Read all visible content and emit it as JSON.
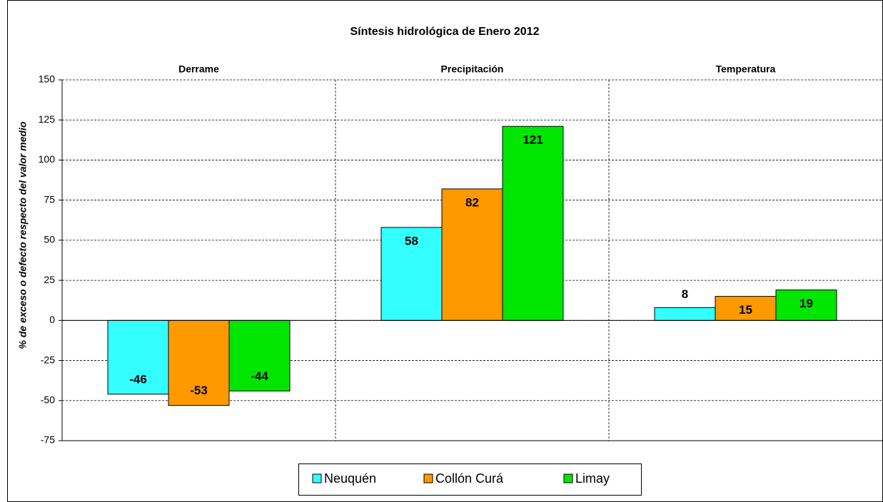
{
  "chart_data": {
    "type": "bar",
    "title": "Síntesis hidrológica de Enero 2012",
    "y_label": "% de exceso o defecto respecto del valor medio",
    "categories": [
      "Derrame",
      "Precipitación",
      "Temperatura"
    ],
    "series": [
      {
        "name": "Neuquén",
        "color": "#33ffff",
        "values": [
          -46,
          58,
          8
        ]
      },
      {
        "name": "Collón Curá",
        "color": "#ff9900",
        "values": [
          -53,
          82,
          15
        ]
      },
      {
        "name": "Limay",
        "color": "#00e600",
        "values": [
          -44,
          121,
          19
        ]
      }
    ],
    "ylim": [
      -75,
      150
    ],
    "yticks": [
      -75,
      -50,
      -25,
      0,
      25,
      50,
      75,
      100,
      125,
      150
    ],
    "grid": true
  }
}
